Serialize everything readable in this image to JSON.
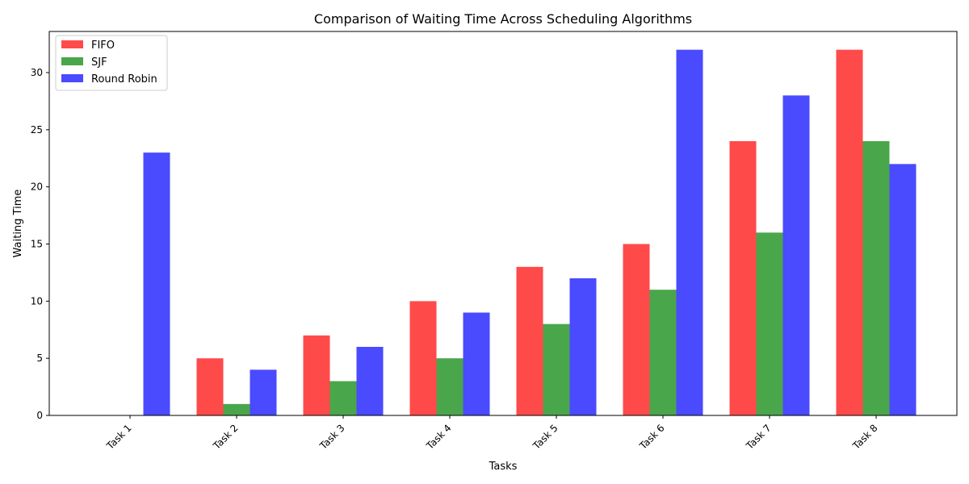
{
  "chart_data": {
    "type": "bar",
    "title": "Comparison of Waiting Time Across Scheduling Algorithms",
    "xlabel": "Tasks",
    "ylabel": "Waiting Time",
    "categories": [
      "Task 1",
      "Task 2",
      "Task 3",
      "Task 4",
      "Task 5",
      "Task 6",
      "Task 7",
      "Task 8"
    ],
    "series": [
      {
        "name": "FIFO",
        "color": "#ff4a4a",
        "values": [
          0,
          5,
          7,
          10,
          13,
          15,
          24,
          32
        ]
      },
      {
        "name": "SJF",
        "color": "#4aa64a",
        "values": [
          0,
          1,
          3,
          5,
          8,
          11,
          16,
          24
        ]
      },
      {
        "name": "Round Robin",
        "color": "#4a4aff",
        "values": [
          23,
          4,
          6,
          9,
          12,
          32,
          28,
          22
        ]
      }
    ],
    "ylim": [
      0,
      33.6
    ],
    "yticks": [
      0,
      5,
      10,
      15,
      20,
      25,
      30
    ],
    "grid": false,
    "legend_position": "top-left"
  }
}
